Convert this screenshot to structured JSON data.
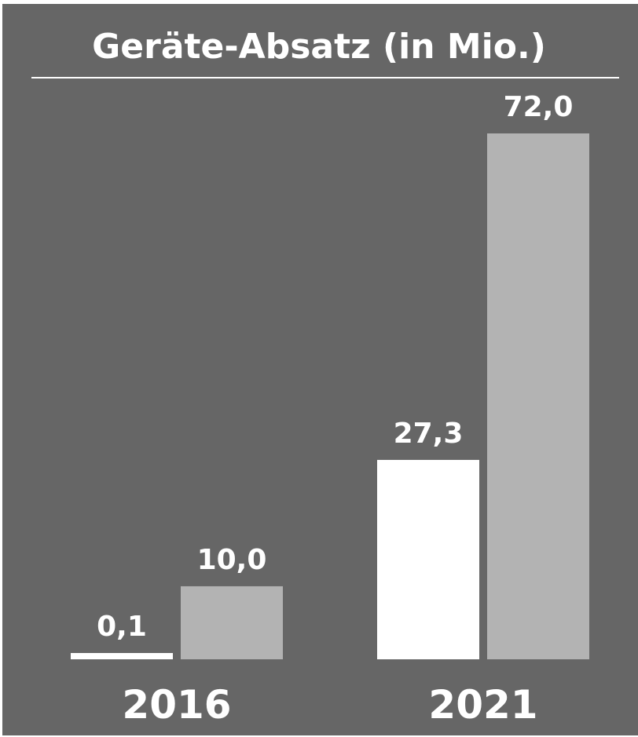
{
  "chart_data": {
    "type": "bar",
    "title": "Geräte-Absatz (in Mio.)",
    "categories": [
      "2016",
      "2021"
    ],
    "series": [
      {
        "values": [
          0.1,
          27.3
        ],
        "labels": [
          "0,1",
          "27,3"
        ]
      },
      {
        "values": [
          10.0,
          72.0
        ],
        "labels": [
          "10,0",
          "72,0"
        ]
      }
    ],
    "ylim": [
      0,
      72
    ],
    "grid": false,
    "legend": "none",
    "colors": {
      "background": "#666666",
      "series": [
        "#ffffff",
        "#b3b3b3"
      ],
      "text": "#ffffff"
    }
  }
}
